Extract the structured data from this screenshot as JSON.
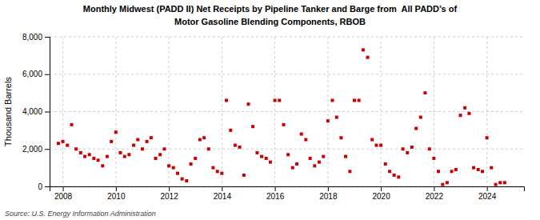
{
  "chart_data": {
    "type": "scatter",
    "title": "Monthly Midwest (PADD II) Net Receipts by Pipeline Tanker and Barge from  All PADD’s of",
    "subtitle": "Motor Gasoline Blending Components, RBOB",
    "y_label": "Thousand Barrels",
    "annotations": [
      "Source: U.S. Energy Information Administration"
    ],
    "color": "#cc0000",
    "marker": "square",
    "grid": true,
    "xlim": [
      2007.5,
      2025.4
    ],
    "xticks": [
      2008,
      2010,
      2012,
      2014,
      2016,
      2018,
      2020,
      2022,
      2024
    ],
    "ylim": [
      0,
      8000
    ],
    "yticks": [
      0,
      {
        "value": 2000,
        "label": "2,000"
      },
      {
        "value": 4000,
        "label": "4,000"
      },
      {
        "value": 6000,
        "label": "6,000"
      },
      {
        "value": 8000,
        "label": "8,000"
      }
    ],
    "x": [
      2007.83,
      2008.0,
      2008.17,
      2008.33,
      2008.5,
      2008.67,
      2008.83,
      2009.0,
      2009.17,
      2009.33,
      2009.5,
      2009.67,
      2009.83,
      2010.0,
      2010.17,
      2010.33,
      2010.5,
      2010.67,
      2010.83,
      2011.0,
      2011.17,
      2011.33,
      2011.5,
      2011.67,
      2011.83,
      2012.0,
      2012.17,
      2012.33,
      2012.5,
      2012.67,
      2012.83,
      2013.0,
      2013.17,
      2013.33,
      2013.5,
      2013.67,
      2013.83,
      2014.0,
      2014.17,
      2014.33,
      2014.5,
      2014.67,
      2014.83,
      2015.0,
      2015.17,
      2015.33,
      2015.5,
      2015.67,
      2015.83,
      2016.0,
      2016.17,
      2016.33,
      2016.5,
      2016.67,
      2016.83,
      2017.0,
      2017.17,
      2017.33,
      2017.5,
      2017.67,
      2017.83,
      2018.0,
      2018.17,
      2018.33,
      2018.5,
      2018.67,
      2018.83,
      2019.0,
      2019.17,
      2019.33,
      2019.5,
      2019.67,
      2019.83,
      2020.0,
      2020.17,
      2020.33,
      2020.5,
      2020.67,
      2020.83,
      2021.0,
      2021.17,
      2021.33,
      2021.5,
      2021.67,
      2021.83,
      2022.0,
      2022.17,
      2022.33,
      2022.5,
      2022.67,
      2022.83,
      2023.0,
      2023.17,
      2023.33,
      2023.5,
      2023.67,
      2023.83,
      2024.0,
      2024.17,
      2024.33,
      2024.5,
      2024.67
    ],
    "values": [
      2300,
      2400,
      2200,
      3300,
      2000,
      1800,
      1600,
      1700,
      1500,
      1400,
      1100,
      1600,
      2400,
      2900,
      1800,
      1600,
      1700,
      2200,
      2500,
      2000,
      2400,
      2600,
      1500,
      1700,
      2000,
      1100,
      1000,
      700,
      400,
      300,
      1200,
      1500,
      2500,
      2600,
      2000,
      1000,
      800,
      700,
      4600,
      3000,
      2200,
      2100,
      600,
      4400,
      3200,
      1800,
      1600,
      1500,
      1300,
      4600,
      4600,
      3300,
      1700,
      1000,
      1200,
      2800,
      2500,
      1500,
      1100,
      1300,
      1600,
      3500,
      4600,
      3700,
      2600,
      1600,
      800,
      4600,
      4600,
      7300,
      6900,
      2500,
      2200,
      2200,
      1200,
      800,
      600,
      500,
      2000,
      1800,
      2100,
      3100,
      3700,
      5000,
      2000,
      1500,
      800,
      100,
      200,
      800,
      900,
      3800,
      4200,
      3900,
      1000,
      900,
      800,
      2600,
      1000,
      100,
      200,
      200
    ]
  }
}
